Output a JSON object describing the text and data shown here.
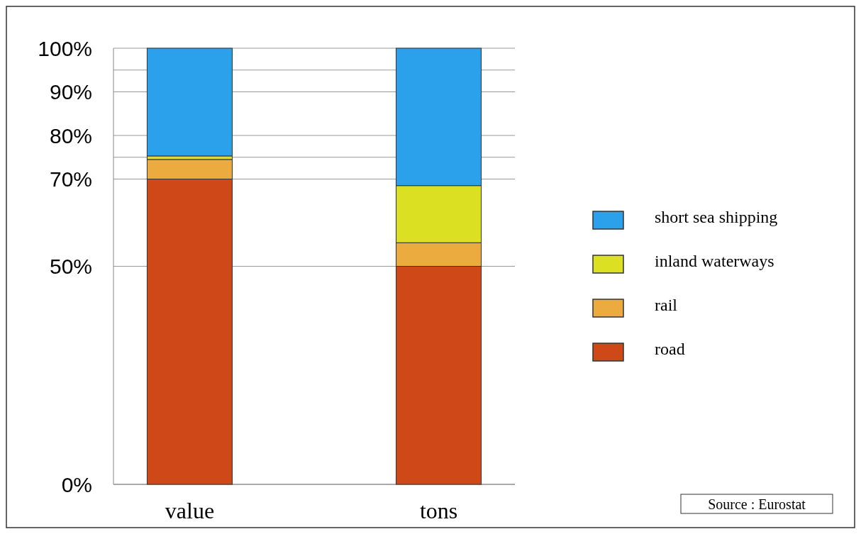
{
  "chart_data": {
    "type": "bar",
    "stacked": true,
    "categories": [
      "value",
      "tons"
    ],
    "series": [
      {
        "name": "road",
        "color": "#cf4818",
        "values": [
          70,
          50
        ]
      },
      {
        "name": "rail",
        "color": "#ebab3e",
        "values": [
          4.5,
          5.4
        ]
      },
      {
        "name": "inland waterways",
        "color": "#dbe023",
        "values": [
          0.8,
          13.1
        ]
      },
      {
        "name": "short sea shipping",
        "color": "#2ba1ec",
        "values": [
          24.7,
          31.5
        ]
      }
    ],
    "ylim": [
      0,
      100
    ],
    "yticks": [
      {
        "value": 0,
        "label": "0%"
      },
      {
        "value": 50,
        "label": "50%"
      },
      {
        "value": 70,
        "label": "70%"
      },
      {
        "value": 75,
        "label": null
      },
      {
        "value": 80,
        "label": "80%"
      },
      {
        "value": 90,
        "label": "90%"
      },
      {
        "value": 95,
        "label": null
      },
      {
        "value": 100,
        "label": "100%"
      }
    ],
    "grid": "y",
    "legend": "right",
    "annotations": [
      "Source : Eurostat"
    ]
  }
}
